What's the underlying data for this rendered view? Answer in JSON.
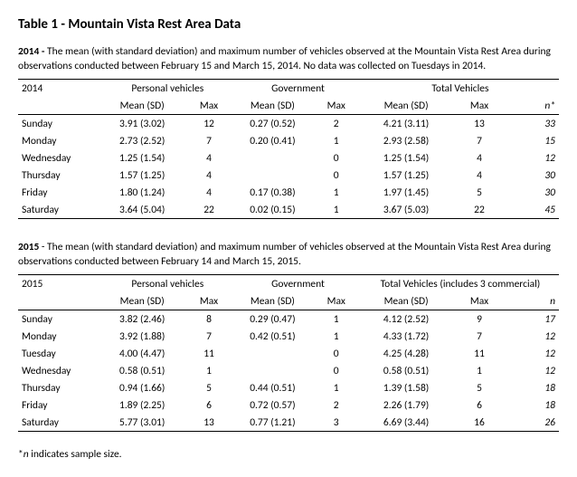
{
  "title": "Table 1 - Mountain Vista Rest Area Data",
  "table2014": {
    "caption_bold": "2014 - ",
    "caption_text": "The mean (with standard deviation) and maximum number of vehicles observed at the Mountain Vista Rest Area during observations conducted between February 15 and March 15, 2014. No data was collected on Tuesdays in 2014.",
    "year": "2014",
    "group_personal": "Personal vehicles",
    "group_gov": "Government",
    "group_total": "Total Vehicles",
    "h_mean": "Mean (SD)",
    "h_max": "Max",
    "h_n": "n*",
    "rows": [
      {
        "day": "Sunday",
        "pm": "3.91 (3.02)",
        "px": "12",
        "gm": "0.27 (0.52)",
        "gx": "2",
        "tm": "4.21 (3.11)",
        "tx": "13",
        "n": "33"
      },
      {
        "day": "Monday",
        "pm": "2.73 (2.52)",
        "px": "7",
        "gm": "0.20 (0.41)",
        "gx": "1",
        "tm": "2.93 (2.58)",
        "tx": "7",
        "n": "15"
      },
      {
        "day": "Wednesday",
        "pm": "1.25 (1.54)",
        "px": "4",
        "gm": "",
        "gx": "0",
        "tm": "1.25 (1.54)",
        "tx": "4",
        "n": "12"
      },
      {
        "day": "Thursday",
        "pm": "1.57 (1.25)",
        "px": "4",
        "gm": "",
        "gx": "0",
        "tm": "1.57 (1.25)",
        "tx": "4",
        "n": "30"
      },
      {
        "day": "Friday",
        "pm": "1.80 (1.24)",
        "px": "4",
        "gm": "0.17 (0.38)",
        "gx": "1",
        "tm": "1.97 (1.45)",
        "tx": "5",
        "n": "30"
      },
      {
        "day": "Saturday",
        "pm": "3.64 (5.04)",
        "px": "22",
        "gm": "0.02 (0.15)",
        "gx": "1",
        "tm": "3.67 (5.03)",
        "tx": "22",
        "n": "45"
      }
    ]
  },
  "table2015": {
    "caption_bold": "2015 ",
    "caption_text": " - The mean (with standard deviation) and maximum number of vehicles observed at the Mountain Vista Rest Area during observations conducted between February 14 and March 15, 2015.",
    "year": "2015",
    "group_personal": "Personal vehicles",
    "group_gov": "Government",
    "group_total": "Total Vehicles (includes 3 commercial)",
    "h_mean": "Mean (SD)",
    "h_max": "Max",
    "h_n": "n",
    "rows": [
      {
        "day": "Sunday",
        "pm": "3.82 (2.46)",
        "px": "8",
        "gm": "0.29 (0.47)",
        "gx": "1",
        "tm": "4.12 (2.52)",
        "tx": "9",
        "n": "17"
      },
      {
        "day": "Monday",
        "pm": "3.92 (1.88)",
        "px": "7",
        "gm": "0.42 (0.51)",
        "gx": "1",
        "tm": "4.33 (1.72)",
        "tx": "7",
        "n": "12"
      },
      {
        "day": "Tuesday",
        "pm": "4.00 (4.47)",
        "px": "11",
        "gm": "",
        "gx": "0",
        "tm": "4.25 (4.28)",
        "tx": "11",
        "n": "12"
      },
      {
        "day": "Wednesday",
        "pm": "0.58 (0.51)",
        "px": "1",
        "gm": "",
        "gx": "0",
        "tm": "0.58 (0.51)",
        "tx": "1",
        "n": "12"
      },
      {
        "day": "Thursday",
        "pm": "0.94 (1.66)",
        "px": "5",
        "gm": "0.44 (0.51)",
        "gx": "1",
        "tm": "1.39 (1.58)",
        "tx": "5",
        "n": "18"
      },
      {
        "day": "Friday",
        "pm": "1.89 (2.25)",
        "px": "6",
        "gm": "0.72 (0.57)",
        "gx": "2",
        "tm": "2.26 (1.79)",
        "tx": "6",
        "n": "18"
      },
      {
        "day": "Saturday",
        "pm": "5.77 (3.01)",
        "px": "13",
        "gm": "0.77 (1.21)",
        "gx": "3",
        "tm": "6.69 (3.44)",
        "tx": "16",
        "n": "26"
      }
    ]
  },
  "footnote_pre": "*",
  "footnote_ital": "n",
  "footnote_post": " indicates sample size.",
  "colwidths": {
    "day": "13%",
    "mean": "13%",
    "max": "8%",
    "gmean": "12%",
    "gmax": "8%",
    "tmean": "14%",
    "tmax": "9%",
    "n": "8%"
  }
}
